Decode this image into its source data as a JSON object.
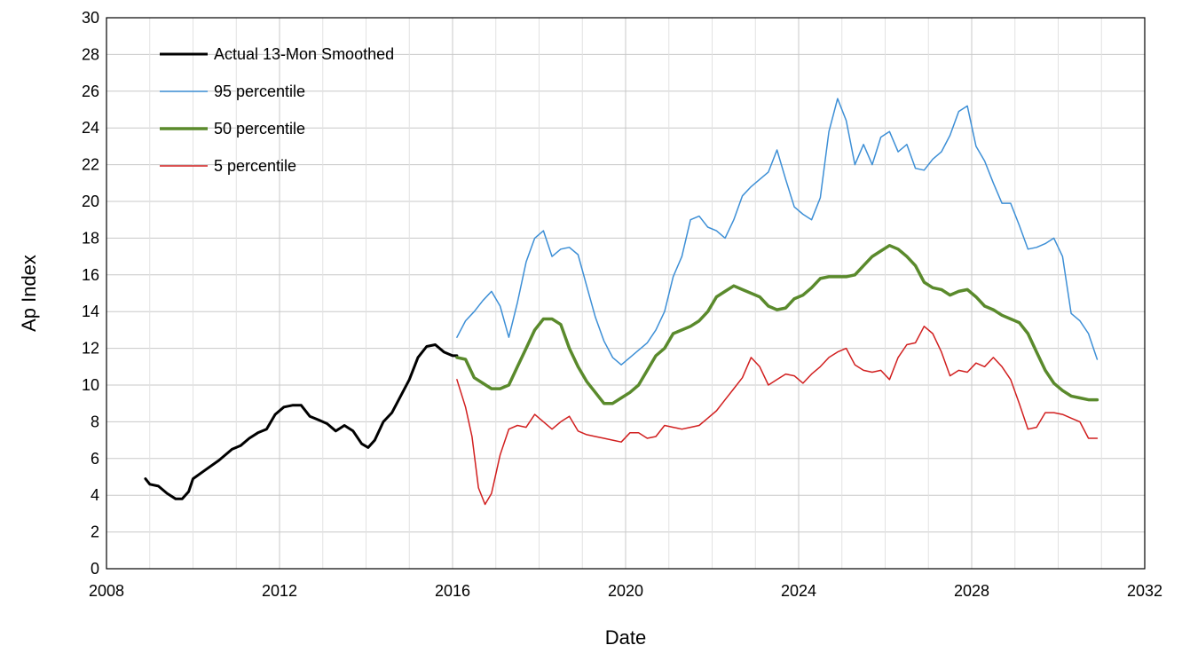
{
  "chart_data": {
    "type": "line",
    "xlabel": "Date",
    "ylabel": "Ap Index",
    "xlim": [
      2008,
      2032
    ],
    "ylim": [
      0,
      30
    ],
    "x_ticks": [
      2008,
      2012,
      2016,
      2020,
      2024,
      2028,
      2032
    ],
    "y_ticks": [
      0,
      2,
      4,
      6,
      8,
      10,
      12,
      14,
      16,
      18,
      20,
      22,
      24,
      26,
      28,
      30
    ],
    "grid": true,
    "legend_position": "top-left",
    "series": [
      {
        "name": "Actual 13-Mon Smoothed",
        "color": "#000000",
        "x": [
          2008.9,
          2009.0,
          2009.2,
          2009.4,
          2009.6,
          2009.75,
          2009.9,
          2010.0,
          2010.3,
          2010.6,
          2010.9,
          2011.1,
          2011.3,
          2011.5,
          2011.7,
          2011.9,
          2012.1,
          2012.3,
          2012.5,
          2012.7,
          2012.9,
          2013.1,
          2013.3,
          2013.5,
          2013.7,
          2013.9,
          2014.05,
          2014.2,
          2014.4,
          2014.6,
          2014.8,
          2015.0,
          2015.2,
          2015.4,
          2015.6,
          2015.8,
          2016.0,
          2016.1
        ],
        "values": [
          4.9,
          4.6,
          4.5,
          4.1,
          3.8,
          3.8,
          4.2,
          4.9,
          5.4,
          5.9,
          6.5,
          6.7,
          7.1,
          7.4,
          7.6,
          8.4,
          8.8,
          8.9,
          8.9,
          8.3,
          8.1,
          7.9,
          7.5,
          7.8,
          7.5,
          6.8,
          6.6,
          7.0,
          8.0,
          8.5,
          9.4,
          10.3,
          11.5,
          12.1,
          12.2,
          11.8,
          11.6,
          11.6
        ]
      },
      {
        "name": "95 percentile",
        "color": "#3d8fd6",
        "x": [
          2016.1,
          2016.3,
          2016.5,
          2016.7,
          2016.9,
          2017.1,
          2017.3,
          2017.5,
          2017.7,
          2017.9,
          2018.1,
          2018.3,
          2018.5,
          2018.7,
          2018.9,
          2019.1,
          2019.3,
          2019.5,
          2019.7,
          2019.9,
          2020.1,
          2020.3,
          2020.5,
          2020.7,
          2020.9,
          2021.1,
          2021.3,
          2021.5,
          2021.7,
          2021.9,
          2022.1,
          2022.3,
          2022.5,
          2022.7,
          2022.9,
          2023.1,
          2023.3,
          2023.5,
          2023.7,
          2023.9,
          2024.1,
          2024.3,
          2024.5,
          2024.7,
          2024.9,
          2025.1,
          2025.3,
          2025.5,
          2025.7,
          2025.9,
          2026.1,
          2026.3,
          2026.5,
          2026.7,
          2026.9,
          2027.1,
          2027.3,
          2027.5,
          2027.7,
          2027.9,
          2028.1,
          2028.3,
          2028.5,
          2028.7,
          2028.9,
          2029.1,
          2029.3,
          2029.5,
          2029.7,
          2029.9,
          2030.1,
          2030.3,
          2030.5,
          2030.7,
          2030.9
        ],
        "values": [
          12.6,
          13.5,
          14.0,
          14.6,
          15.1,
          14.3,
          12.6,
          14.5,
          16.7,
          18.0,
          18.4,
          17.0,
          17.4,
          17.5,
          17.1,
          15.4,
          13.7,
          12.4,
          11.5,
          11.1,
          11.5,
          11.9,
          12.3,
          13.0,
          14.0,
          15.9,
          17.0,
          19.0,
          19.2,
          18.6,
          18.4,
          18.0,
          19.0,
          20.3,
          20.8,
          21.2,
          21.6,
          22.8,
          21.2,
          19.7,
          19.3,
          19.0,
          20.2,
          23.8,
          25.6,
          24.4,
          22.0,
          23.1,
          22.0,
          23.5,
          23.8,
          22.7,
          23.1,
          21.8,
          21.7,
          22.3,
          22.7,
          23.6,
          24.9,
          25.2,
          23.0,
          22.2,
          21.0,
          19.9,
          19.9,
          18.7,
          17.4,
          17.5,
          17.7,
          18.0,
          17.0,
          13.9,
          13.5,
          12.8,
          11.4
        ]
      },
      {
        "name": "50 percentile",
        "color": "#5a8a2c",
        "x": [
          2016.1,
          2016.3,
          2016.5,
          2016.7,
          2016.9,
          2017.1,
          2017.3,
          2017.5,
          2017.7,
          2017.9,
          2018.1,
          2018.3,
          2018.5,
          2018.7,
          2018.9,
          2019.1,
          2019.3,
          2019.5,
          2019.7,
          2019.9,
          2020.1,
          2020.3,
          2020.5,
          2020.7,
          2020.9,
          2021.1,
          2021.3,
          2021.5,
          2021.7,
          2021.9,
          2022.1,
          2022.3,
          2022.5,
          2022.7,
          2022.9,
          2023.1,
          2023.3,
          2023.5,
          2023.7,
          2023.9,
          2024.1,
          2024.3,
          2024.5,
          2024.7,
          2024.9,
          2025.1,
          2025.3,
          2025.5,
          2025.7,
          2025.9,
          2026.1,
          2026.3,
          2026.5,
          2026.7,
          2026.9,
          2027.1,
          2027.3,
          2027.5,
          2027.7,
          2027.9,
          2028.1,
          2028.3,
          2028.5,
          2028.7,
          2028.9,
          2029.1,
          2029.3,
          2029.5,
          2029.7,
          2029.9,
          2030.1,
          2030.3,
          2030.5,
          2030.7,
          2030.9
        ],
        "values": [
          11.5,
          11.4,
          10.4,
          10.1,
          9.8,
          9.8,
          10.0,
          11.0,
          12.0,
          13.0,
          13.6,
          13.6,
          13.3,
          12.0,
          11.0,
          10.2,
          9.6,
          9.0,
          9.0,
          9.3,
          9.6,
          10.0,
          10.8,
          11.6,
          12.0,
          12.8,
          13.0,
          13.2,
          13.5,
          14.0,
          14.8,
          15.1,
          15.4,
          15.2,
          15.0,
          14.8,
          14.3,
          14.1,
          14.2,
          14.7,
          14.9,
          15.3,
          15.8,
          15.9,
          15.9,
          15.9,
          16.0,
          16.5,
          17.0,
          17.3,
          17.6,
          17.4,
          17.0,
          16.5,
          15.6,
          15.3,
          15.2,
          14.9,
          15.1,
          15.2,
          14.8,
          14.3,
          14.1,
          13.8,
          13.6,
          13.4,
          12.8,
          11.8,
          10.8,
          10.1,
          9.7,
          9.4,
          9.3,
          9.2,
          9.2
        ]
      },
      {
        "name": "5 percentile",
        "color": "#d11f1f",
        "x": [
          2016.1,
          2016.3,
          2016.45,
          2016.6,
          2016.75,
          2016.9,
          2017.1,
          2017.3,
          2017.5,
          2017.7,
          2017.9,
          2018.1,
          2018.3,
          2018.5,
          2018.7,
          2018.9,
          2019.1,
          2019.3,
          2019.5,
          2019.7,
          2019.9,
          2020.1,
          2020.3,
          2020.5,
          2020.7,
          2020.9,
          2021.1,
          2021.3,
          2021.5,
          2021.7,
          2021.9,
          2022.1,
          2022.3,
          2022.5,
          2022.7,
          2022.9,
          2023.1,
          2023.3,
          2023.5,
          2023.7,
          2023.9,
          2024.1,
          2024.3,
          2024.5,
          2024.7,
          2024.9,
          2025.1,
          2025.3,
          2025.5,
          2025.7,
          2025.9,
          2026.1,
          2026.3,
          2026.5,
          2026.7,
          2026.9,
          2027.1,
          2027.3,
          2027.5,
          2027.7,
          2027.9,
          2028.1,
          2028.3,
          2028.5,
          2028.7,
          2028.9,
          2029.1,
          2029.3,
          2029.5,
          2029.7,
          2029.9,
          2030.1,
          2030.3,
          2030.5,
          2030.7,
          2030.9
        ],
        "values": [
          10.3,
          8.8,
          7.2,
          4.4,
          3.5,
          4.1,
          6.2,
          7.6,
          7.8,
          7.7,
          8.4,
          8.0,
          7.6,
          8.0,
          8.3,
          7.5,
          7.3,
          7.2,
          7.1,
          7.0,
          6.9,
          7.4,
          7.4,
          7.1,
          7.2,
          7.8,
          7.7,
          7.6,
          7.7,
          7.8,
          8.2,
          8.6,
          9.2,
          9.8,
          10.4,
          11.5,
          11.0,
          10.0,
          10.3,
          10.6,
          10.5,
          10.1,
          10.6,
          11.0,
          11.5,
          11.8,
          12.0,
          11.1,
          10.8,
          10.7,
          10.8,
          10.3,
          11.5,
          12.2,
          12.3,
          13.2,
          12.8,
          11.8,
          10.5,
          10.8,
          10.7,
          11.2,
          11.0,
          11.5,
          11.0,
          10.3,
          9.0,
          7.6,
          7.7,
          8.5,
          8.5,
          8.4,
          8.2,
          8.0,
          7.1,
          7.1
        ]
      }
    ]
  }
}
